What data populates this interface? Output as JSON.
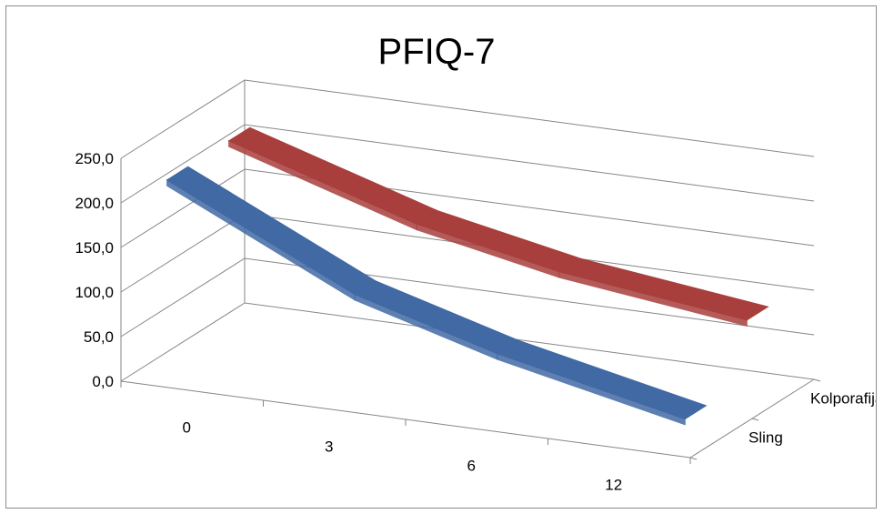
{
  "chart_data": {
    "type": "line",
    "title": "PFIQ-7",
    "categories": [
      "0",
      "3",
      "6",
      "12"
    ],
    "series": [
      {
        "name": "Sling",
        "values": [
          215,
          115,
          70,
          25
        ],
        "color": "#4169a4"
      },
      {
        "name": "Kolporafija",
        "values": [
          215,
          150,
          118,
          92
        ],
        "color": "#a83f3d"
      }
    ],
    "y_tick_labels": [
      "0,0",
      "50,0",
      "100,0",
      "150,0",
      "200,0",
      "250,0"
    ],
    "ylim": [
      0,
      250
    ],
    "grid": true,
    "view": "3d"
  }
}
